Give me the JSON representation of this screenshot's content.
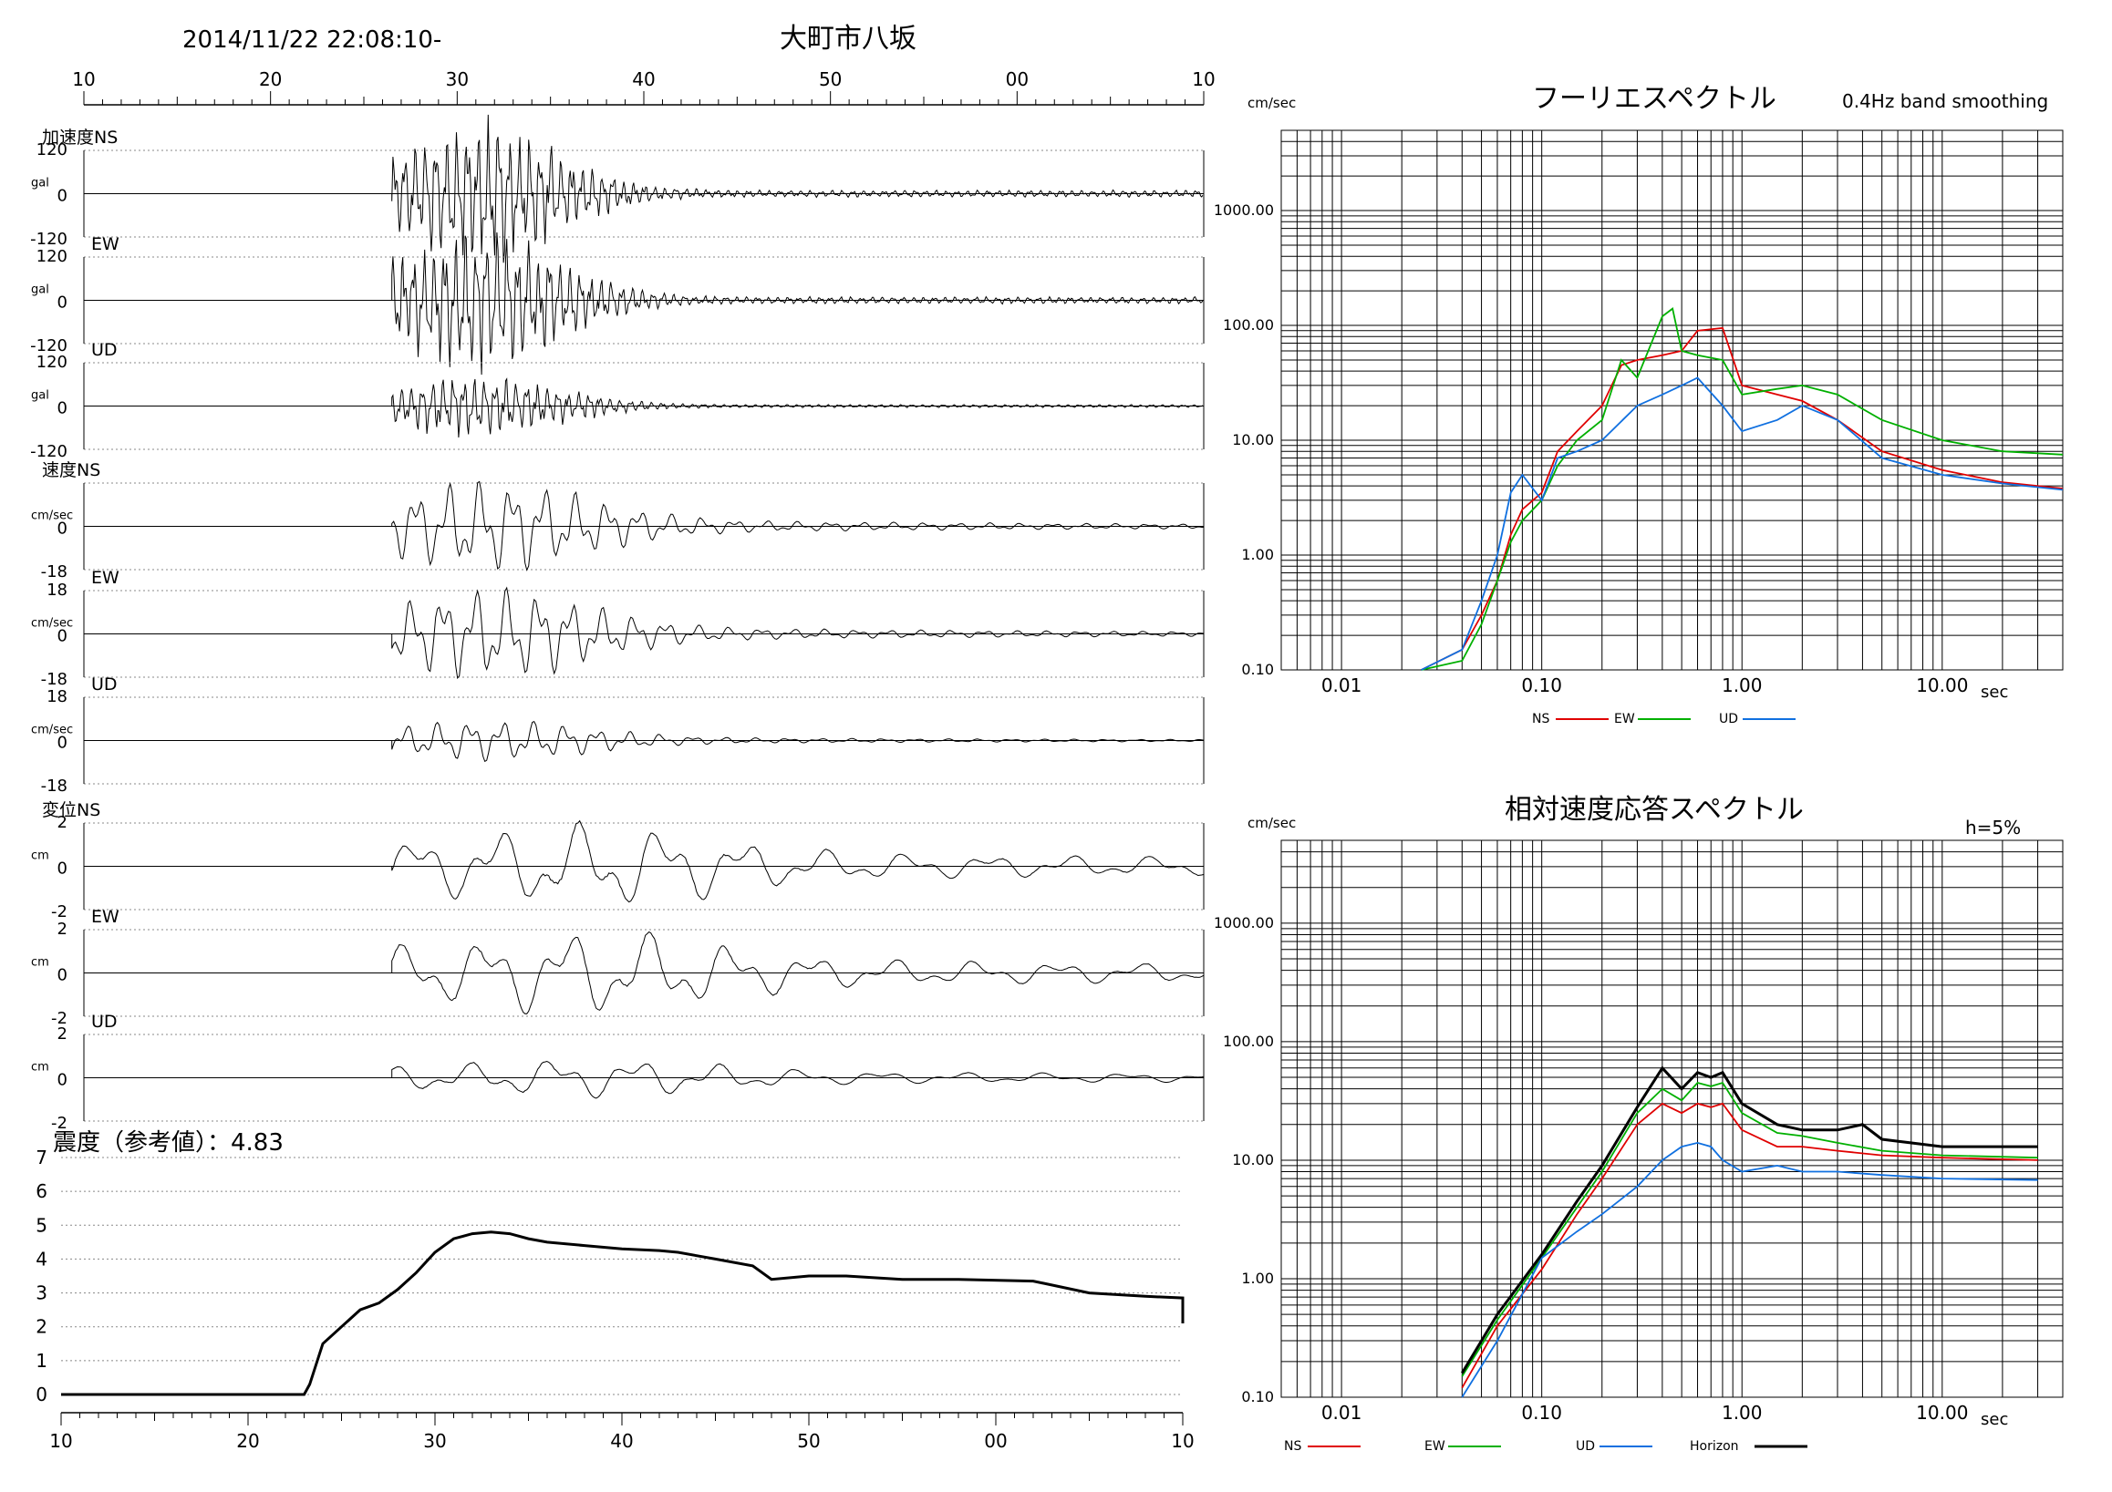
{
  "header": {
    "datetime": "2014/11/22 22:08:10-",
    "station": "大町市八坂"
  },
  "waveforms": {
    "time_ticks": [
      "10",
      "20",
      "30",
      "40",
      "50",
      "00",
      "10"
    ],
    "panels": [
      {
        "group": "加速度",
        "component": "NS",
        "label": "加速度NS",
        "unit": "gal",
        "max": "120",
        "zero": "0",
        "min": "-120"
      },
      {
        "group": "加速度",
        "component": "EW",
        "label": "EW",
        "unit": "gal",
        "max": "120",
        "zero": "0",
        "min": "-120"
      },
      {
        "group": "加速度",
        "component": "UD",
        "label": "UD",
        "unit": "gal",
        "max": "120",
        "zero": "0",
        "min": "-120"
      },
      {
        "group": "速度",
        "component": "NS",
        "label": "速度NS",
        "unit": "cm/sec",
        "max": "",
        "zero": "0",
        "min": "-18"
      },
      {
        "group": "速度",
        "component": "EW",
        "label": "EW",
        "unit": "cm/sec",
        "max": "18",
        "zero": "0",
        "min": "-18"
      },
      {
        "group": "速度",
        "component": "UD",
        "label": "UD",
        "unit": "cm/sec",
        "max": "18",
        "zero": "0",
        "min": "-18"
      },
      {
        "group": "変位",
        "component": "NS",
        "label": "変位NS",
        "unit": "cm",
        "max": "2",
        "zero": "0",
        "min": "-2"
      },
      {
        "group": "変位",
        "component": "EW",
        "label": "EW",
        "unit": "cm",
        "max": "2",
        "zero": "0",
        "min": "-2"
      },
      {
        "group": "変位",
        "component": "UD",
        "label": "UD",
        "unit": "cm",
        "max": "2",
        "zero": "0",
        "min": "-2"
      }
    ]
  },
  "intensity": {
    "title": "震度（参考値）：4.83",
    "y_ticks": [
      "0",
      "1",
      "2",
      "3",
      "4",
      "5",
      "6",
      "7"
    ],
    "x_ticks": [
      "10",
      "20",
      "30",
      "40",
      "50",
      "00",
      "10"
    ]
  },
  "fourier": {
    "title": "フーリエスペクトル",
    "note": "0.4Hz band smoothing",
    "unit": "cm/sec",
    "y_ticks": [
      "1000.00",
      "100.00",
      "10.00",
      "1.00",
      "0.10"
    ],
    "x_ticks": [
      "0.01",
      "0.10",
      "1.00",
      "10.00"
    ],
    "x_unit": "sec",
    "legend": [
      {
        "name": "NS",
        "color": "#e00000"
      },
      {
        "name": "EW",
        "color": "#00b000"
      },
      {
        "name": "UD",
        "color": "#1070e0"
      }
    ]
  },
  "response": {
    "title": "相対速度応答スペクトル",
    "note": "h=5%",
    "unit": "cm/sec",
    "y_ticks": [
      "1000.00",
      "100.00",
      "10.00",
      "1.00",
      "0.10"
    ],
    "x_ticks": [
      "0.01",
      "0.10",
      "1.00",
      "10.00"
    ],
    "x_unit": "sec",
    "legend": [
      {
        "name": "NS",
        "color": "#e00000"
      },
      {
        "name": "EW",
        "color": "#00b000"
      },
      {
        "name": "UD",
        "color": "#1070e0"
      },
      {
        "name": "Horizon",
        "color": "#000000"
      }
    ]
  },
  "chart_data": [
    {
      "type": "line",
      "title": "震度（参考値）：4.83",
      "xlabel": "",
      "ylabel": "",
      "x_tick_labels": [
        "10",
        "20",
        "30",
        "40",
        "50",
        "00",
        "10"
      ],
      "ylim": [
        0,
        7
      ],
      "x_seconds_after_10": [
        0,
        13,
        13.3,
        14,
        15,
        16,
        17,
        18,
        19,
        20,
        21,
        22,
        23,
        24,
        25,
        26,
        28,
        30,
        32,
        33,
        35,
        37,
        38,
        40,
        42,
        45,
        48,
        52,
        55,
        58,
        60,
        62,
        66,
        70
      ],
      "series": [
        {
          "name": "",
          "values": [
            0,
            0,
            0.3,
            1.5,
            2.0,
            2.5,
            2.7,
            3.1,
            3.6,
            4.2,
            4.6,
            4.75,
            4.8,
            4.75,
            4.6,
            4.5,
            4.4,
            4.3,
            4.25,
            4.2,
            4.0,
            3.8,
            3.4,
            3.5,
            3.5,
            3.4,
            3.4,
            3.35,
            3.0,
            2.9,
            2.85,
            2.4,
            2.25,
            2.1
          ]
        }
      ]
    },
    {
      "type": "line",
      "title": "フーリエスペクトル",
      "xlabel": "sec",
      "ylabel": "cm/sec",
      "xscale": "log",
      "yscale": "log",
      "xlim": [
        0.005,
        40
      ],
      "ylim": [
        0.1,
        5000
      ],
      "series": [
        {
          "name": "NS",
          "x": [
            0.025,
            0.04,
            0.05,
            0.06,
            0.07,
            0.08,
            0.1,
            0.12,
            0.15,
            0.2,
            0.25,
            0.3,
            0.4,
            0.5,
            0.6,
            0.8,
            1.0,
            1.5,
            2.0,
            3.0,
            5.0,
            10.0,
            20.0,
            40.0
          ],
          "values": [
            0.1,
            0.15,
            0.3,
            0.6,
            1.5,
            2.5,
            3.5,
            8,
            12,
            20,
            45,
            50,
            55,
            60,
            90,
            95,
            30,
            25,
            22,
            15,
            8,
            5.5,
            4.3,
            3.8
          ]
        },
        {
          "name": "EW",
          "x": [
            0.025,
            0.04,
            0.05,
            0.06,
            0.07,
            0.08,
            0.1,
            0.12,
            0.15,
            0.2,
            0.25,
            0.3,
            0.4,
            0.45,
            0.5,
            0.6,
            0.8,
            1.0,
            1.5,
            2.0,
            3.0,
            5.0,
            10.0,
            20.0,
            40.0
          ],
          "values": [
            0.1,
            0.12,
            0.25,
            0.6,
            1.3,
            2.0,
            3.0,
            6,
            10,
            15,
            50,
            35,
            120,
            140,
            60,
            55,
            50,
            25,
            28,
            30,
            25,
            15,
            10,
            8,
            7.5
          ]
        },
        {
          "name": "UD",
          "x": [
            0.025,
            0.04,
            0.05,
            0.06,
            0.07,
            0.08,
            0.1,
            0.12,
            0.15,
            0.2,
            0.3,
            0.4,
            0.5,
            0.6,
            0.8,
            1.0,
            1.5,
            2.0,
            3.0,
            5.0,
            10.0,
            20.0,
            40.0
          ],
          "values": [
            0.1,
            0.15,
            0.4,
            1.0,
            3.5,
            5.0,
            3.0,
            7,
            8,
            10,
            20,
            25,
            30,
            35,
            20,
            12,
            15,
            20,
            15,
            7,
            5,
            4.2,
            3.7
          ]
        }
      ]
    },
    {
      "type": "line",
      "title": "相対速度応答スペクトル",
      "xlabel": "sec",
      "ylabel": "cm/sec",
      "xscale": "log",
      "yscale": "log",
      "xlim": [
        0.005,
        40
      ],
      "ylim": [
        0.1,
        5000
      ],
      "series": [
        {
          "name": "NS",
          "x": [
            0.04,
            0.06,
            0.1,
            0.15,
            0.2,
            0.3,
            0.4,
            0.5,
            0.6,
            0.7,
            0.8,
            1.0,
            1.5,
            2.0,
            3.0,
            5.0,
            10.0,
            30.0
          ],
          "values": [
            0.12,
            0.4,
            1.2,
            3.5,
            7,
            20,
            30,
            25,
            30,
            28,
            30,
            18,
            13,
            13,
            12,
            11,
            10.5,
            10
          ]
        },
        {
          "name": "EW",
          "x": [
            0.04,
            0.06,
            0.1,
            0.15,
            0.2,
            0.3,
            0.4,
            0.5,
            0.6,
            0.7,
            0.8,
            1.0,
            1.5,
            2.0,
            3.0,
            5.0,
            10.0,
            30.0
          ],
          "values": [
            0.15,
            0.45,
            1.5,
            4,
            8,
            25,
            40,
            32,
            45,
            42,
            45,
            25,
            17,
            16,
            14,
            12,
            11,
            10.5
          ]
        },
        {
          "name": "UD",
          "x": [
            0.04,
            0.06,
            0.1,
            0.15,
            0.2,
            0.3,
            0.4,
            0.5,
            0.6,
            0.7,
            0.8,
            1.0,
            1.5,
            2.0,
            3.0,
            5.0,
            10.0,
            30.0
          ],
          "values": [
            0.1,
            0.3,
            1.5,
            2.5,
            3.5,
            6,
            10,
            13,
            14,
            13,
            10,
            8,
            9,
            8,
            8,
            7.5,
            7.0,
            6.8
          ]
        },
        {
          "name": "Horizon",
          "x": [
            0.04,
            0.06,
            0.1,
            0.15,
            0.2,
            0.3,
            0.4,
            0.5,
            0.6,
            0.7,
            0.8,
            1.0,
            1.5,
            2.0,
            3.0,
            4.0,
            5.0,
            10.0,
            30.0
          ],
          "values": [
            0.16,
            0.5,
            1.6,
            4.5,
            9,
            28,
            60,
            40,
            55,
            50,
            55,
            30,
            20,
            18,
            18,
            20,
            15,
            13,
            13
          ]
        }
      ]
    }
  ]
}
